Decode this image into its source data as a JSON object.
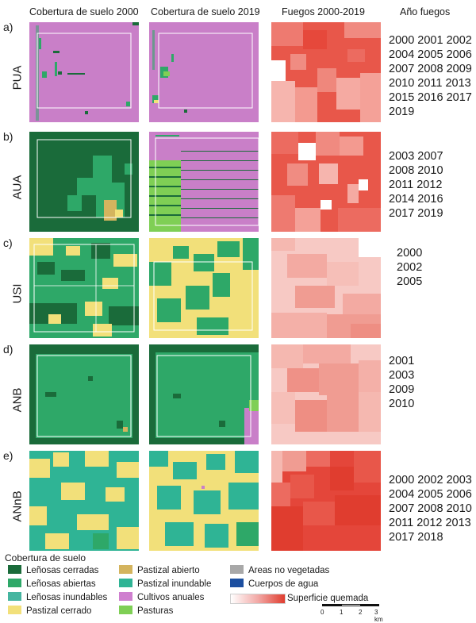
{
  "headers": [
    "Cobertura de suelo 2000",
    "Cobertura de suelo 2019",
    "Fuegos 2000-2019",
    "Año fuegos"
  ],
  "panels": [
    {
      "label": "a)",
      "code": "PUA",
      "years": [
        "2000 2001 2002",
        "2004 2005 2006",
        "2007 2008 2009",
        "2010 2011 2013",
        "2015 2016 2017",
        "2019"
      ]
    },
    {
      "label": "b)",
      "code": "AUA",
      "years": [
        "2003 2007",
        "2008 2010",
        "2011 2012",
        "2014 2016",
        "2017 2019"
      ]
    },
    {
      "label": "c)",
      "code": "USI",
      "years": [
        "2000",
        "2002",
        "2005"
      ]
    },
    {
      "label": "d)",
      "code": "ANB",
      "years": [
        "2001",
        "2003",
        "2009",
        "2010"
      ]
    },
    {
      "label": "e)",
      "code": "ANnB",
      "years": [
        "2000 2002 2003",
        "2004 2005 2006",
        "2007 2008 2010",
        "2011 2012 2013",
        "2017 2018"
      ]
    }
  ],
  "legend": {
    "title": "Cobertura de suelo",
    "items": [
      {
        "label": "Leñosas cerradas",
        "color": "#1a6b3a"
      },
      {
        "label": "Leñosas abiertas",
        "color": "#2ea868"
      },
      {
        "label": "Leñosas inundables",
        "color": "#45b5a0"
      },
      {
        "label": "Pastizal cerrado",
        "color": "#f2e07a"
      },
      {
        "label": "Pastizal abierto",
        "color": "#d4b45e"
      },
      {
        "label": "Pastizal inundable",
        "color": "#2fb495"
      },
      {
        "label": "Cultivos anuales",
        "color": "#cf7fcf"
      },
      {
        "label": "Pasturas",
        "color": "#7fcf55"
      },
      {
        "label": "Areas no vegetadas",
        "color": "#a8a8a8"
      },
      {
        "label": "Cuerpos de agua",
        "color": "#1c4fa0"
      }
    ],
    "gradient_label": "Superficie quemada",
    "scale": {
      "ticks": [
        "0",
        "1",
        "2",
        "3 km"
      ]
    }
  }
}
